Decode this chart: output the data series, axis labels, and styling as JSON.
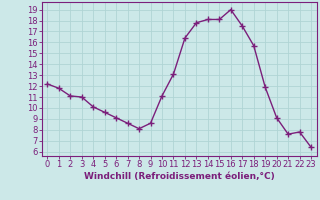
{
  "x": [
    0,
    1,
    2,
    3,
    4,
    5,
    6,
    7,
    8,
    9,
    10,
    11,
    12,
    13,
    14,
    15,
    16,
    17,
    18,
    19,
    20,
    21,
    22,
    23
  ],
  "y": [
    12.2,
    11.8,
    11.1,
    11.0,
    10.1,
    9.6,
    9.1,
    8.6,
    8.1,
    8.6,
    11.1,
    13.1,
    16.4,
    17.8,
    18.1,
    18.1,
    19.0,
    17.5,
    15.7,
    11.9,
    9.1,
    7.6,
    7.8,
    6.4
  ],
  "line_color": "#7B1F7B",
  "marker": "+",
  "marker_size": 4,
  "marker_lw": 1.0,
  "bg_color": "#cce8e8",
  "grid_color": "#b0d4d4",
  "xlabel": "Windchill (Refroidissement éolien,°C)",
  "xlabel_fontsize": 6.5,
  "xtick_labels": [
    "0",
    "1",
    "2",
    "3",
    "4",
    "5",
    "6",
    "7",
    "8",
    "9",
    "10",
    "11",
    "12",
    "13",
    "14",
    "15",
    "16",
    "17",
    "18",
    "19",
    "20",
    "21",
    "22",
    "23"
  ],
  "ytick_labels": [
    "6",
    "7",
    "8",
    "9",
    "10",
    "11",
    "12",
    "13",
    "14",
    "15",
    "16",
    "17",
    "18",
    "19"
  ],
  "yticks": [
    6,
    7,
    8,
    9,
    10,
    11,
    12,
    13,
    14,
    15,
    16,
    17,
    18,
    19
  ],
  "ylim": [
    5.6,
    19.7
  ],
  "xlim": [
    -0.5,
    23.5
  ],
  "tick_fontsize": 6,
  "label_color": "#7B1F7B",
  "tick_color": "#7B1F7B",
  "spine_color": "#7B1F7B",
  "linewidth": 1.0
}
